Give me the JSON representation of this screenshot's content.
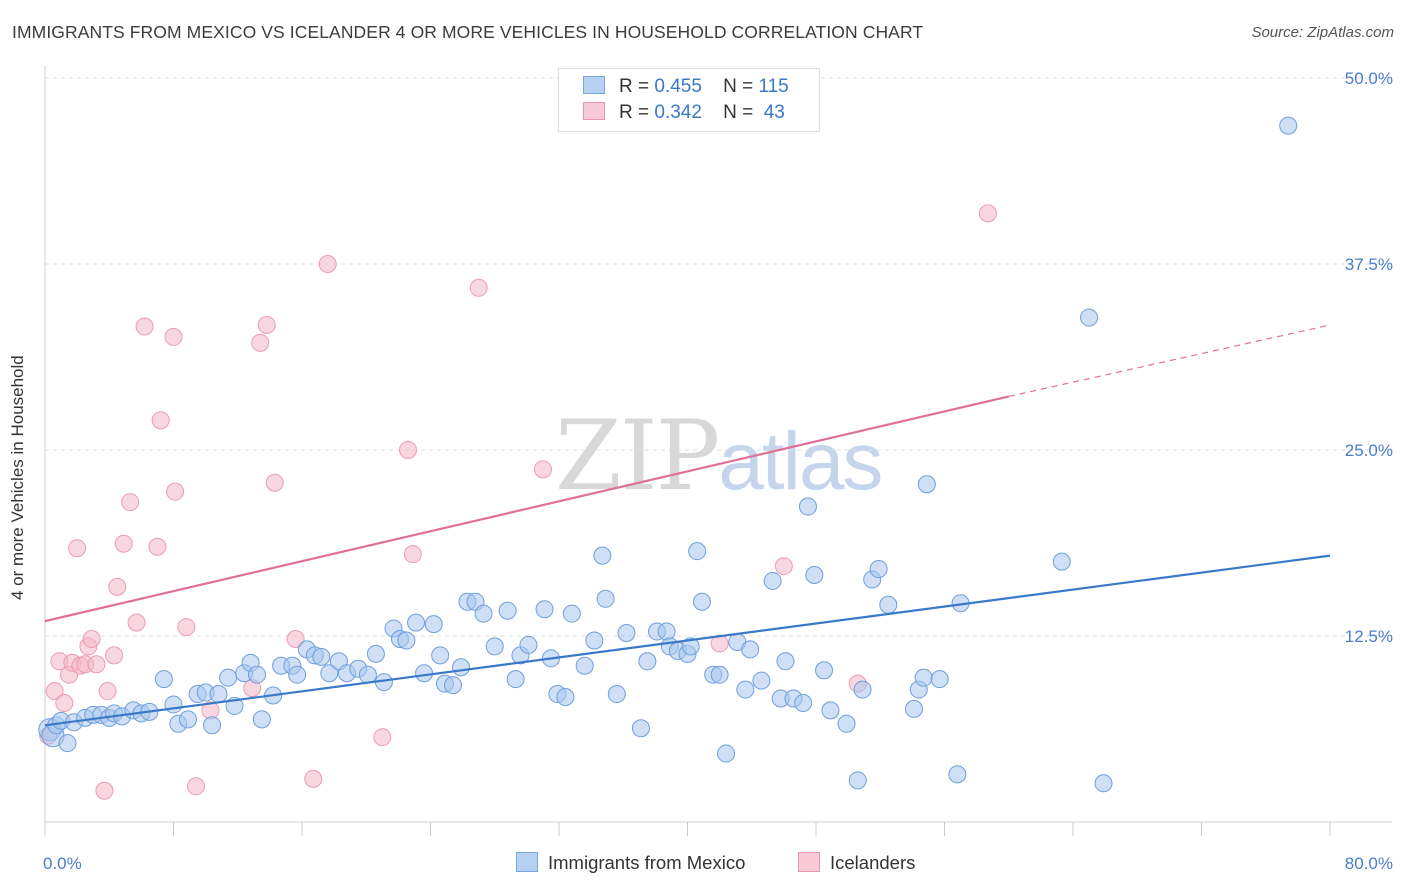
{
  "title": "IMMIGRANTS FROM MEXICO VS ICELANDER 4 OR MORE VEHICLES IN HOUSEHOLD CORRELATION CHART",
  "source": "Source: ZipAtlas.com",
  "watermark": {
    "zip": "ZIP",
    "atlas": "atlas"
  },
  "colors": {
    "blue": "#3a78c8",
    "blue_fill": "#a7c6ee",
    "pink": "#e07098",
    "pink_fill": "#f4b6c9",
    "grid": "#dddddd"
  },
  "legend": {
    "rows": [
      {
        "r_label": "R =",
        "r_value": "0.455",
        "n_label": "N =",
        "n_value": "115"
      },
      {
        "r_label": "R =",
        "r_value": "0.342",
        "n_label": "N =",
        "n_value": "43"
      }
    ]
  },
  "chart_data": {
    "type": "scatter",
    "ylabel": "4 or more Vehicles in Household",
    "xlim": [
      0,
      80
    ],
    "ylim": [
      0,
      50
    ],
    "x_tick_labels": [
      "0.0%",
      "80.0%"
    ],
    "y_ticks": [
      12.5,
      25.0,
      37.5,
      50.0
    ],
    "y_tick_labels": [
      "12.5%",
      "25.0%",
      "37.5%",
      "50.0%"
    ],
    "grid": true,
    "series": [
      {
        "name": "Immigrants from Mexico",
        "color": "#3a78c8",
        "trend": {
          "x0": 0,
          "y0": 6.5,
          "x1": 80,
          "y1": 17.9
        },
        "points": [
          [
            0.3,
            6.2
          ],
          [
            0.5,
            5.8
          ],
          [
            0.7,
            6.5
          ],
          [
            1.0,
            6.8
          ],
          [
            1.4,
            5.3
          ],
          [
            1.8,
            6.7
          ],
          [
            2.5,
            7.0
          ],
          [
            3.0,
            7.2
          ],
          [
            3.5,
            7.2
          ],
          [
            4.0,
            7.0
          ],
          [
            4.3,
            7.3
          ],
          [
            4.8,
            7.1
          ],
          [
            5.5,
            7.5
          ],
          [
            6.0,
            7.3
          ],
          [
            6.5,
            7.4
          ],
          [
            7.4,
            9.6
          ],
          [
            8.0,
            7.9
          ],
          [
            8.3,
            6.6
          ],
          [
            8.9,
            6.9
          ],
          [
            9.5,
            8.6
          ],
          [
            10.0,
            8.7
          ],
          [
            10.4,
            6.5
          ],
          [
            10.8,
            8.6
          ],
          [
            11.4,
            9.7
          ],
          [
            11.8,
            7.8
          ],
          [
            12.4,
            10.0
          ],
          [
            12.8,
            10.7
          ],
          [
            13.2,
            9.9
          ],
          [
            13.5,
            6.9
          ],
          [
            14.2,
            8.5
          ],
          [
            14.7,
            10.5
          ],
          [
            15.4,
            10.5
          ],
          [
            15.7,
            9.9
          ],
          [
            16.3,
            11.6
          ],
          [
            16.8,
            11.2
          ],
          [
            17.2,
            11.1
          ],
          [
            17.7,
            10.0
          ],
          [
            18.3,
            10.8
          ],
          [
            18.8,
            10.0
          ],
          [
            19.5,
            10.3
          ],
          [
            20.1,
            9.9
          ],
          [
            20.6,
            11.3
          ],
          [
            21.1,
            9.4
          ],
          [
            21.7,
            13.0
          ],
          [
            22.1,
            12.3
          ],
          [
            22.5,
            12.2
          ],
          [
            23.1,
            13.4
          ],
          [
            23.6,
            10.0
          ],
          [
            24.2,
            13.3
          ],
          [
            24.6,
            11.2
          ],
          [
            24.9,
            9.3
          ],
          [
            25.4,
            9.2
          ],
          [
            25.9,
            10.4
          ],
          [
            26.3,
            14.8
          ],
          [
            26.8,
            14.8
          ],
          [
            27.3,
            14.0
          ],
          [
            28.0,
            11.8
          ],
          [
            28.8,
            14.2
          ],
          [
            29.3,
            9.6
          ],
          [
            29.6,
            11.2
          ],
          [
            30.1,
            11.9
          ],
          [
            31.1,
            14.3
          ],
          [
            31.5,
            11.0
          ],
          [
            31.9,
            8.6
          ],
          [
            32.4,
            8.4
          ],
          [
            32.8,
            14.0
          ],
          [
            33.6,
            10.5
          ],
          [
            34.2,
            12.2
          ],
          [
            34.7,
            17.9
          ],
          [
            34.9,
            15.0
          ],
          [
            35.6,
            8.6
          ],
          [
            36.2,
            12.7
          ],
          [
            37.1,
            6.3
          ],
          [
            37.5,
            10.8
          ],
          [
            38.1,
            12.8
          ],
          [
            38.7,
            12.8
          ],
          [
            38.9,
            11.8
          ],
          [
            39.4,
            11.5
          ],
          [
            40.0,
            11.3
          ],
          [
            40.2,
            11.8
          ],
          [
            40.6,
            18.2
          ],
          [
            40.9,
            14.8
          ],
          [
            41.6,
            9.9
          ],
          [
            42.0,
            9.9
          ],
          [
            42.4,
            4.6
          ],
          [
            43.1,
            12.1
          ],
          [
            43.6,
            8.9
          ],
          [
            43.9,
            11.6
          ],
          [
            44.6,
            9.5
          ],
          [
            45.3,
            16.2
          ],
          [
            45.8,
            8.3
          ],
          [
            46.1,
            10.8
          ],
          [
            46.6,
            8.3
          ],
          [
            47.2,
            8.0
          ],
          [
            47.5,
            21.2
          ],
          [
            47.9,
            16.6
          ],
          [
            48.5,
            10.2
          ],
          [
            48.9,
            7.5
          ],
          [
            49.9,
            6.6
          ],
          [
            50.6,
            2.8
          ],
          [
            50.9,
            8.9
          ],
          [
            51.5,
            16.3
          ],
          [
            51.9,
            17.0
          ],
          [
            52.5,
            14.6
          ],
          [
            54.1,
            7.6
          ],
          [
            54.4,
            8.9
          ],
          [
            54.7,
            9.7
          ],
          [
            54.9,
            22.7
          ],
          [
            55.7,
            9.6
          ],
          [
            57.0,
            14.7
          ],
          [
            56.8,
            3.2
          ],
          [
            63.3,
            17.5
          ],
          [
            65.0,
            33.9
          ],
          [
            65.9,
            2.6
          ],
          [
            77.4,
            46.8
          ]
        ]
      },
      {
        "name": "Icelanders",
        "color": "#e07098",
        "trend": {
          "x0": 0,
          "y0": 13.5,
          "x1": 60,
          "y1": 28.6,
          "dash_x1": 80,
          "dash_y1": 33.4
        },
        "points": [
          [
            0.2,
            5.8
          ],
          [
            0.6,
            8.8
          ],
          [
            0.9,
            10.8
          ],
          [
            1.2,
            8.0
          ],
          [
            1.5,
            9.9
          ],
          [
            1.7,
            10.7
          ],
          [
            2.0,
            18.4
          ],
          [
            2.2,
            10.5
          ],
          [
            2.5,
            10.6
          ],
          [
            2.7,
            11.8
          ],
          [
            2.9,
            12.3
          ],
          [
            3.2,
            10.6
          ],
          [
            3.7,
            2.1
          ],
          [
            3.9,
            8.8
          ],
          [
            4.3,
            11.2
          ],
          [
            4.5,
            15.8
          ],
          [
            4.9,
            18.7
          ],
          [
            5.3,
            21.5
          ],
          [
            5.7,
            13.4
          ],
          [
            6.2,
            33.3
          ],
          [
            7.0,
            18.5
          ],
          [
            7.2,
            27.0
          ],
          [
            8.0,
            32.6
          ],
          [
            8.1,
            22.2
          ],
          [
            8.8,
            13.1
          ],
          [
            9.4,
            2.4
          ],
          [
            10.3,
            7.5
          ],
          [
            12.9,
            9.0
          ],
          [
            13.4,
            32.2
          ],
          [
            13.8,
            33.4
          ],
          [
            14.3,
            22.8
          ],
          [
            15.6,
            12.3
          ],
          [
            16.7,
            2.9
          ],
          [
            17.6,
            37.5
          ],
          [
            21.0,
            5.7
          ],
          [
            22.6,
            25.0
          ],
          [
            22.9,
            18.0
          ],
          [
            27.0,
            35.9
          ],
          [
            31.0,
            23.7
          ],
          [
            42.0,
            12.0
          ],
          [
            46.0,
            17.2
          ],
          [
            50.6,
            9.3
          ],
          [
            58.7,
            40.9
          ]
        ]
      }
    ]
  }
}
